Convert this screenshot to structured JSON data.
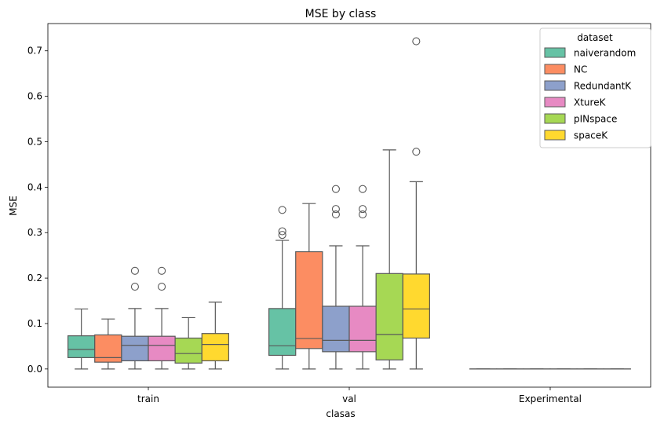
{
  "chart_data": {
    "type": "box",
    "title": "MSE by class",
    "xlabel": "clasas",
    "ylabel": "MSE",
    "ylim": [
      -0.04,
      0.76
    ],
    "yticks": [
      0.0,
      0.1,
      0.2,
      0.3,
      0.4,
      0.5,
      0.6,
      0.7
    ],
    "ytick_labels": [
      "0.0",
      "0.1",
      "0.2",
      "0.3",
      "0.4",
      "0.5",
      "0.6",
      "0.7"
    ],
    "categories": [
      "train",
      "val",
      "Experimental"
    ],
    "grid": false,
    "legend": {
      "title": "dataset",
      "placement": "top-right"
    },
    "series": [
      {
        "name": "naiverandom",
        "color": "#66c2a5",
        "boxes": [
          {
            "whislo": 0.0,
            "q1": 0.025,
            "med": 0.043,
            "q3": 0.073,
            "whishi": 0.132,
            "fliers": []
          },
          {
            "whislo": 0.0,
            "q1": 0.03,
            "med": 0.051,
            "q3": 0.133,
            "whishi": 0.283,
            "fliers": [
              0.295,
              0.303,
              0.35
            ]
          },
          {
            "whislo": 0.0,
            "q1": 0.0,
            "med": 0.0,
            "q3": 0.0,
            "whishi": 0.0,
            "fliers": []
          }
        ]
      },
      {
        "name": "NC",
        "color": "#fc8d62",
        "boxes": [
          {
            "whislo": 0.0,
            "q1": 0.015,
            "med": 0.025,
            "q3": 0.075,
            "whishi": 0.11,
            "fliers": []
          },
          {
            "whislo": 0.0,
            "q1": 0.045,
            "med": 0.067,
            "q3": 0.258,
            "whishi": 0.364,
            "fliers": []
          },
          {
            "whislo": 0.0,
            "q1": 0.0,
            "med": 0.0,
            "q3": 0.0,
            "whishi": 0.0,
            "fliers": []
          }
        ]
      },
      {
        "name": "RedundantK",
        "color": "#8da0cb",
        "boxes": [
          {
            "whislo": 0.0,
            "q1": 0.018,
            "med": 0.052,
            "q3": 0.072,
            "whishi": 0.133,
            "fliers": [
              0.181,
              0.216
            ]
          },
          {
            "whislo": 0.0,
            "q1": 0.038,
            "med": 0.063,
            "q3": 0.138,
            "whishi": 0.271,
            "fliers": [
              0.34,
              0.352,
              0.396
            ]
          },
          {
            "whislo": 0.0,
            "q1": 0.0,
            "med": 0.0,
            "q3": 0.0,
            "whishi": 0.0,
            "fliers": []
          }
        ]
      },
      {
        "name": "XtureK",
        "color": "#e78ac3",
        "boxes": [
          {
            "whislo": 0.0,
            "q1": 0.018,
            "med": 0.052,
            "q3": 0.072,
            "whishi": 0.133,
            "fliers": [
              0.181,
              0.216
            ]
          },
          {
            "whislo": 0.0,
            "q1": 0.038,
            "med": 0.063,
            "q3": 0.138,
            "whishi": 0.271,
            "fliers": [
              0.34,
              0.352,
              0.396
            ]
          },
          {
            "whislo": 0.0,
            "q1": 0.0,
            "med": 0.0,
            "q3": 0.0,
            "whishi": 0.0,
            "fliers": []
          }
        ]
      },
      {
        "name": "pINspace",
        "color": "#a6d854",
        "boxes": [
          {
            "whislo": 0.0,
            "q1": 0.013,
            "med": 0.034,
            "q3": 0.068,
            "whishi": 0.113,
            "fliers": []
          },
          {
            "whislo": 0.0,
            "q1": 0.02,
            "med": 0.076,
            "q3": 0.21,
            "whishi": 0.482,
            "fliers": []
          },
          {
            "whislo": 0.0,
            "q1": 0.0,
            "med": 0.0,
            "q3": 0.0,
            "whishi": 0.0,
            "fliers": []
          }
        ]
      },
      {
        "name": "spaceK",
        "color": "#ffd92f",
        "boxes": [
          {
            "whislo": 0.0,
            "q1": 0.018,
            "med": 0.054,
            "q3": 0.078,
            "whishi": 0.147,
            "fliers": []
          },
          {
            "whislo": 0.0,
            "q1": 0.068,
            "med": 0.132,
            "q3": 0.209,
            "whishi": 0.412,
            "fliers": [
              0.478,
              0.721
            ]
          },
          {
            "whislo": 0.0,
            "q1": 0.0,
            "med": 0.0,
            "q3": 0.0,
            "whishi": 0.0,
            "fliers": []
          }
        ]
      }
    ]
  }
}
